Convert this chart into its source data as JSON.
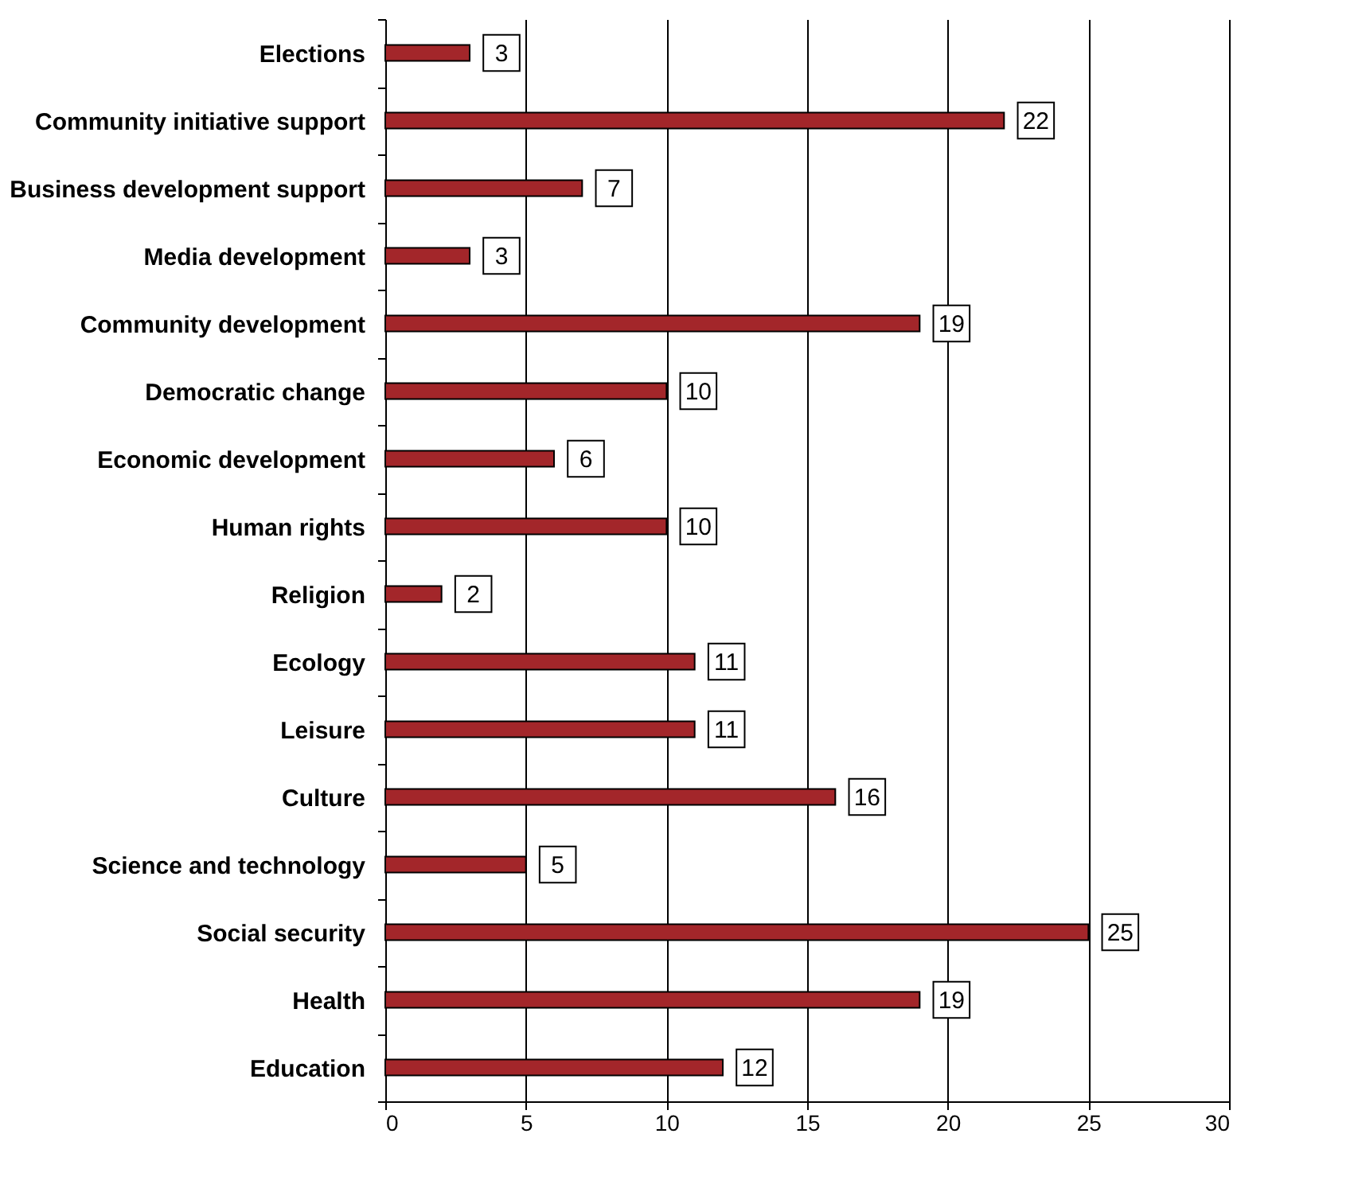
{
  "chart_data": {
    "type": "bar",
    "orientation": "horizontal",
    "categories": [
      "Elections",
      "Community initiative support",
      "Business development support",
      "Media development",
      "Community development",
      "Democratic change",
      "Economic development",
      "Human rights",
      "Religion",
      "Ecology",
      "Leisure",
      "Culture",
      "Science and technology",
      "Social security",
      "Health",
      "Education"
    ],
    "values": [
      3,
      22,
      7,
      3,
      19,
      10,
      6,
      10,
      2,
      11,
      11,
      16,
      5,
      25,
      19,
      12
    ],
    "color": "#a3262a",
    "xlim": [
      0,
      30
    ],
    "xticks": [
      0,
      5,
      10,
      15,
      20,
      25,
      30
    ],
    "grid": "x",
    "data_labels": true
  }
}
